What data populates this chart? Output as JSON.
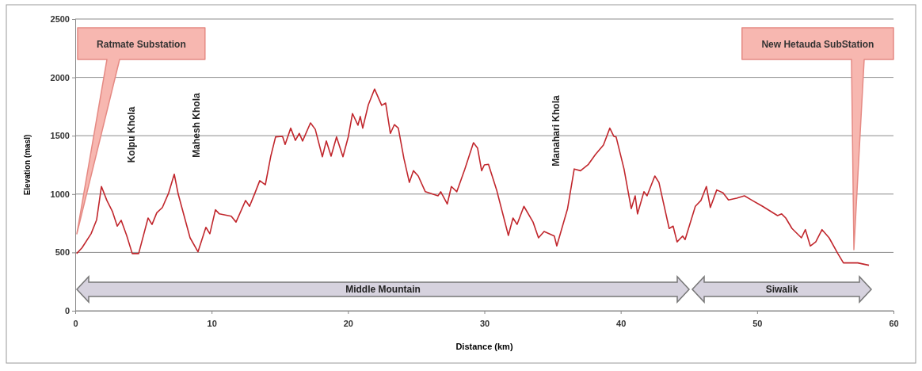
{
  "chart_data": {
    "type": "line",
    "xlabel": "Distance (km)",
    "ylabel": "Elevation (masl)",
    "xlim": [
      0,
      60
    ],
    "xticks": [
      0,
      10,
      20,
      30,
      40,
      50,
      60
    ],
    "ylim": [
      0,
      2500
    ],
    "yticks": [
      0,
      500,
      1000,
      1500,
      2000,
      2500
    ],
    "grid": "y",
    "marker": "none",
    "line_style": "solid",
    "series": [
      {
        "color": "#c1272d",
        "x": [
          0.1,
          0.5,
          1.16,
          1.57,
          1.92,
          2.32,
          2.73,
          3.08,
          3.37,
          3.77,
          4.18,
          4.65,
          5.34,
          5.63,
          5.98,
          6.39,
          6.85,
          7.26,
          7.55,
          7.84,
          8.42,
          9.0,
          9.58,
          9.87,
          10.28,
          10.57,
          11.44,
          11.79,
          12.49,
          12.78,
          13.18,
          13.53,
          13.94,
          14.34,
          14.69,
          15.2,
          15.39,
          15.8,
          16.14,
          16.43,
          16.67,
          17.25,
          17.6,
          18.12,
          18.41,
          18.76,
          19.16,
          19.63,
          20.03,
          20.33,
          20.73,
          20.9,
          21.08,
          21.49,
          21.95,
          22.47,
          22.76,
          23.11,
          23.4,
          23.69,
          24.1,
          24.5,
          24.8,
          25.15,
          25.67,
          26.6,
          26.8,
          27.28,
          27.58,
          27.98,
          28.57,
          29.2,
          29.5,
          29.8,
          30.0,
          30.3,
          30.9,
          31.76,
          32.1,
          32.4,
          32.9,
          33.57,
          33.97,
          34.38,
          35.13,
          35.31,
          36.1,
          36.59,
          37.05,
          37.63,
          38.15,
          38.73,
          39.2,
          39.49,
          39.66,
          40.24,
          40.77,
          41.06,
          41.23,
          41.7,
          41.93,
          42.5,
          42.8,
          43.55,
          43.84,
          44.13,
          44.54,
          44.72,
          45.47,
          45.88,
          46.28,
          46.57,
          47.04,
          47.5,
          47.9,
          48.5,
          49.07,
          49.65,
          50.4,
          51.5,
          51.8,
          52.1,
          52.56,
          53.25,
          53.54,
          53.9,
          54.3,
          54.76,
          55.28,
          55.92,
          56.33,
          57.38,
          58.2
        ],
        "values": [
          490,
          540,
          660,
          780,
          1065,
          945,
          850,
          725,
          775,
          645,
          490,
          490,
          795,
          740,
          840,
          885,
          1010,
          1170,
          1000,
          875,
          625,
          505,
          715,
          660,
          865,
          830,
          810,
          760,
          945,
          895,
          1010,
          1115,
          1080,
          1325,
          1490,
          1495,
          1425,
          1565,
          1460,
          1520,
          1455,
          1610,
          1555,
          1320,
          1455,
          1325,
          1490,
          1320,
          1495,
          1690,
          1590,
          1665,
          1565,
          1765,
          1900,
          1760,
          1780,
          1520,
          1595,
          1565,
          1305,
          1100,
          1200,
          1155,
          1020,
          985,
          1020,
          915,
          1065,
          1020,
          1215,
          1440,
          1395,
          1200,
          1250,
          1255,
          1035,
          645,
          795,
          740,
          895,
          760,
          625,
          680,
          640,
          555,
          875,
          1215,
          1200,
          1255,
          1340,
          1420,
          1565,
          1495,
          1490,
          1215,
          875,
          985,
          830,
          1020,
          985,
          1155,
          1100,
          705,
          725,
          590,
          640,
          610,
          895,
          945,
          1065,
          885,
          1035,
          1010,
          950,
          965,
          985,
          945,
          895,
          815,
          830,
          795,
          705,
          625,
          695,
          555,
          590,
          695,
          625,
          490,
          410,
          410,
          390
        ]
      }
    ],
    "annotations": [
      "Ratmate Substation",
      "New Hetauda SubStation",
      "Kolpu Khola",
      "Mahesh Khola",
      "Manahari Khola",
      "Middle Mountain",
      "Siwalik"
    ]
  }
}
